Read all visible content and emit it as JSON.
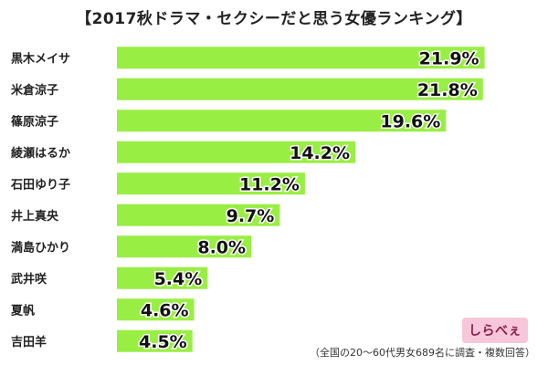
{
  "chart_data": {
    "type": "bar",
    "orientation": "horizontal",
    "title": "【2017秋ドラマ・セクシーだと思う女優ランキング】",
    "categories": [
      "黒木メイサ",
      "米倉涼子",
      "篠原涼子",
      "綾瀬はるか",
      "石田ゆり子",
      "井上真央",
      "満島ひかり",
      "武井咲",
      "夏帆",
      "吉田羊"
    ],
    "values": [
      21.9,
      21.8,
      19.6,
      14.2,
      11.2,
      9.7,
      8.0,
      5.4,
      4.6,
      4.5
    ],
    "value_labels": [
      "21.9%",
      "21.8%",
      "19.6%",
      "14.2%",
      "11.2%",
      "9.7%",
      "8.0%",
      "5.4%",
      "4.6%",
      "4.5%"
    ],
    "xlim": [
      0,
      23.5
    ],
    "grid": false,
    "bar_color": "#99ee44"
  },
  "footnote": "（全国の20～60代男女689名に調査・複数回答）",
  "logo": {
    "text": "しらべぇ",
    "color": "#f7c6d9"
  }
}
